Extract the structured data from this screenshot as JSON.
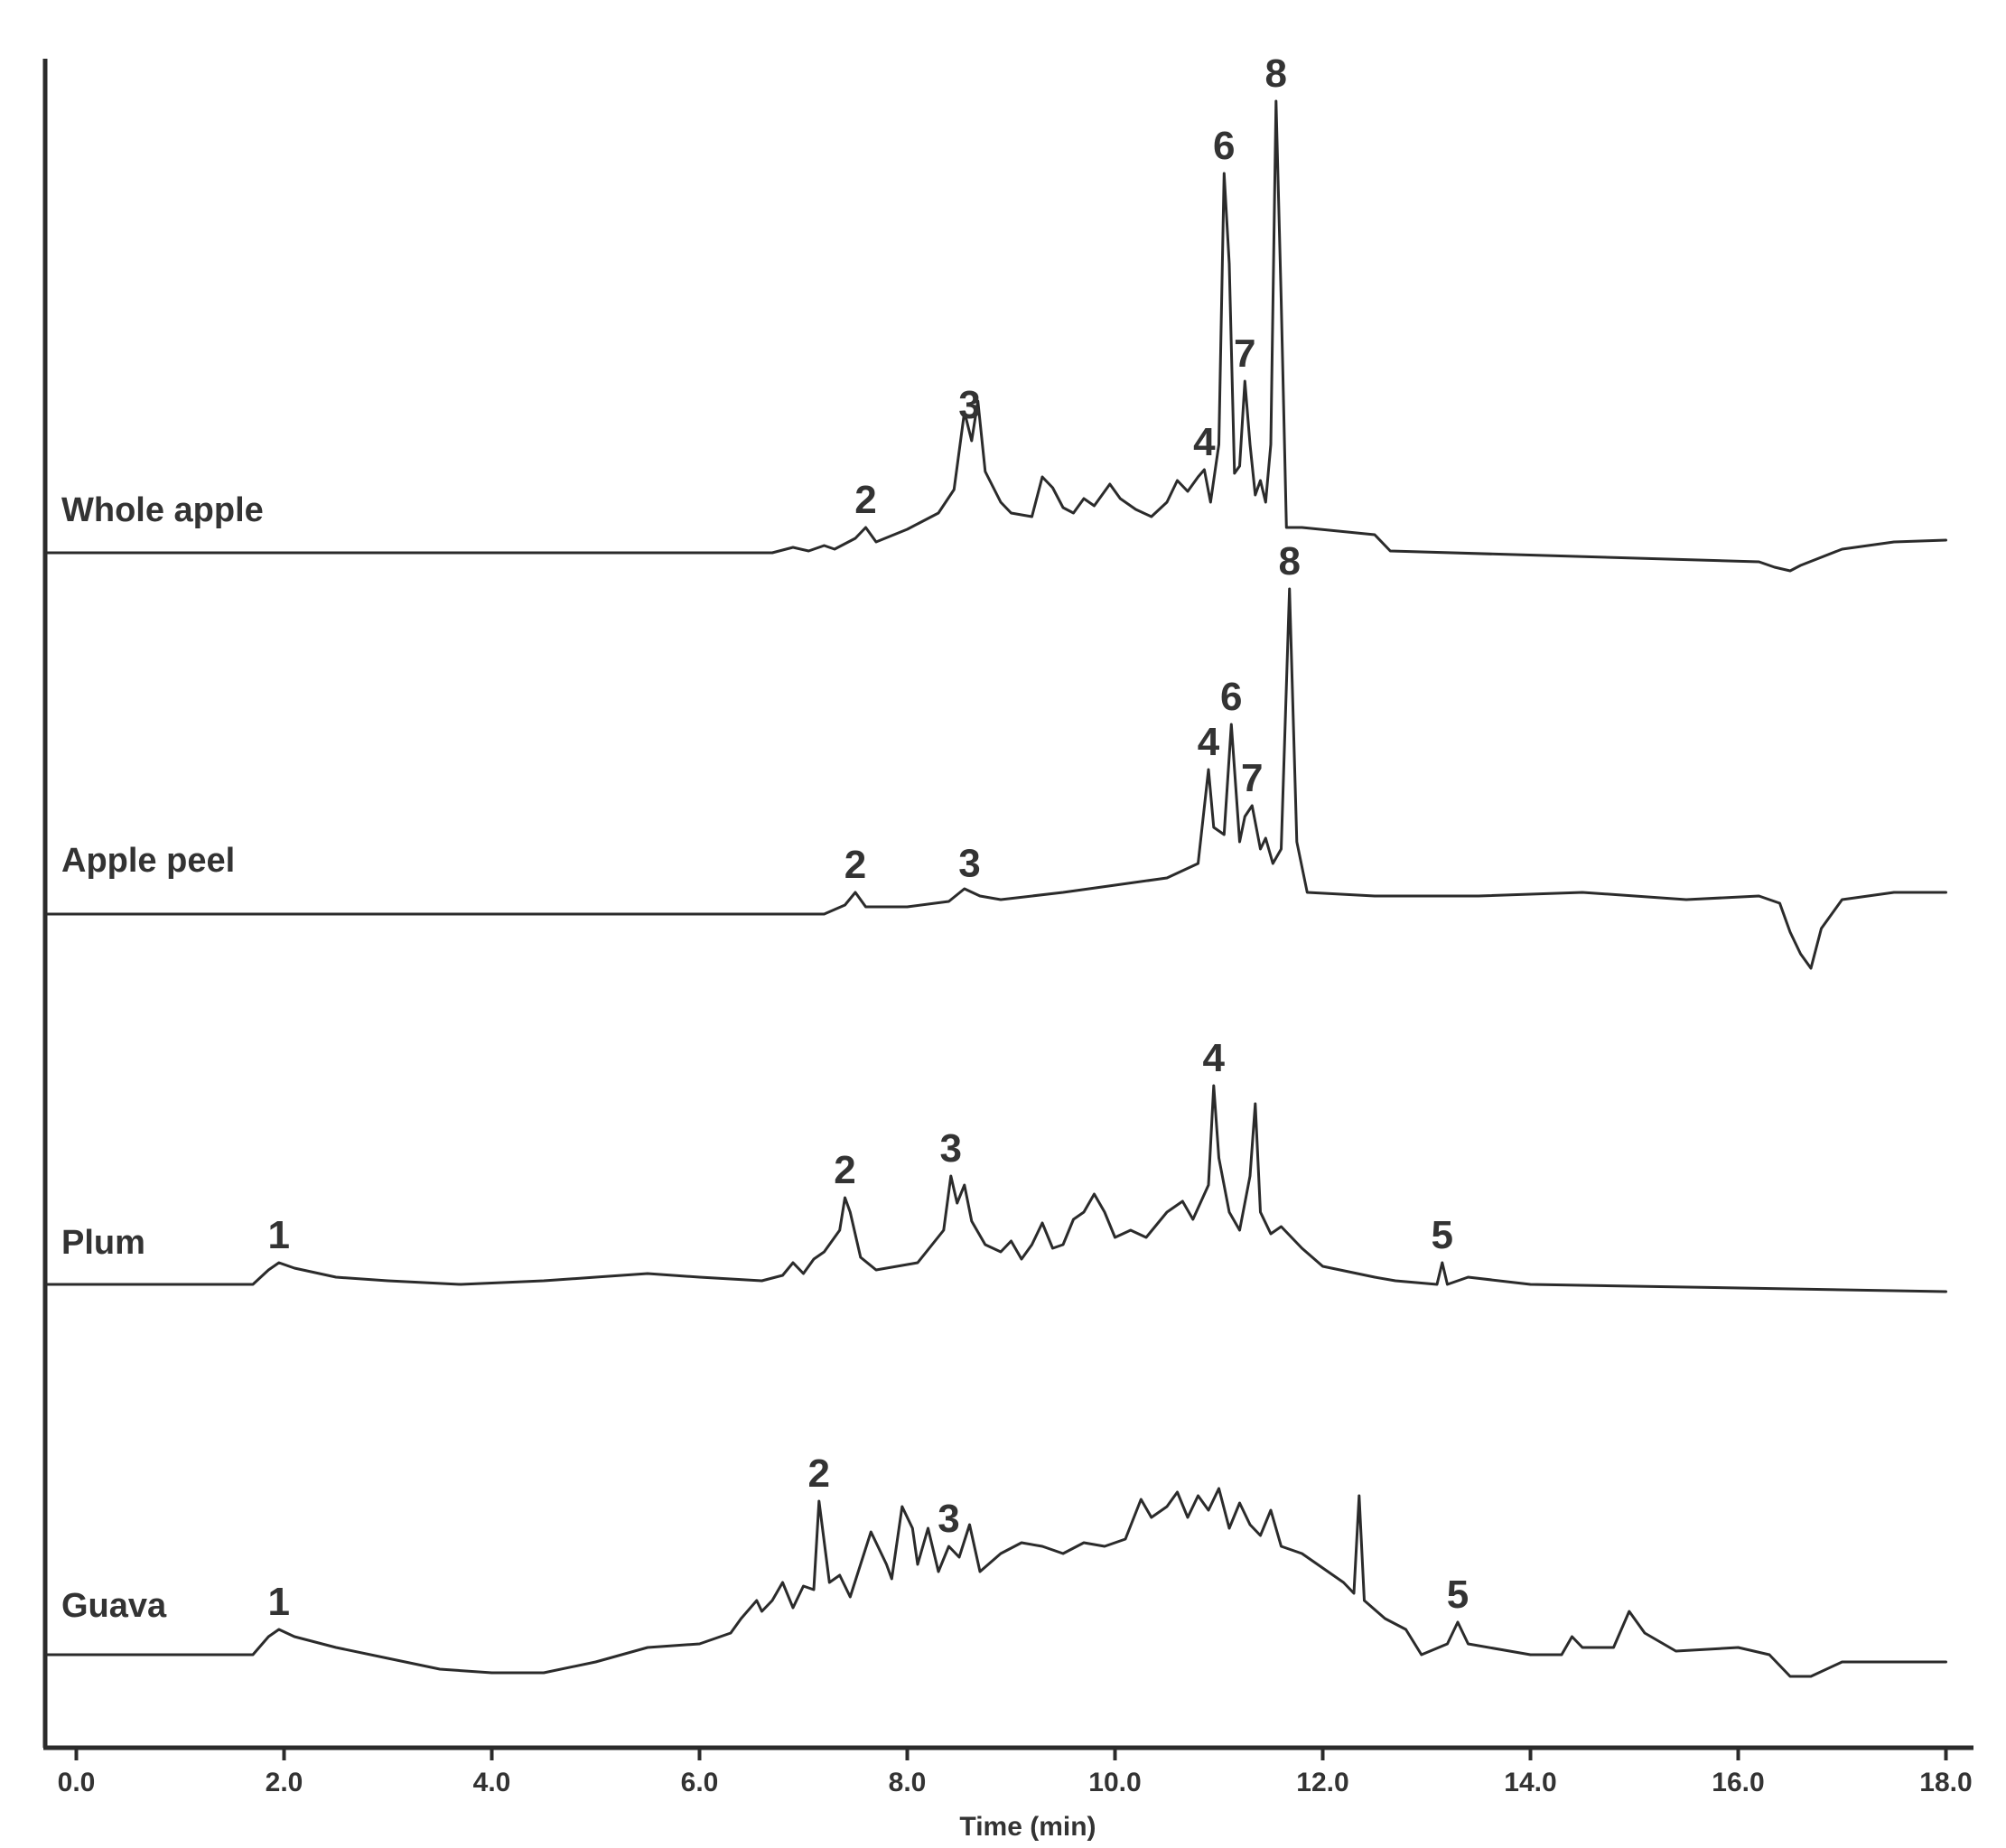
{
  "chart_data": {
    "type": "line",
    "title": "",
    "xlabel": "Time (min)",
    "ylabel": "",
    "xlim": [
      -0.3,
      18.0
    ],
    "grid": false,
    "legend": "none",
    "x_ticks": [
      "0.0",
      "2.0",
      "4.0",
      "6.0",
      "8.0",
      "10.0",
      "12.0",
      "14.0",
      "16.0",
      "18.0"
    ],
    "x_tick_values": [
      0,
      2,
      4,
      6,
      8,
      10,
      12,
      14,
      16,
      18
    ],
    "series": [
      {
        "name": "Whole apple",
        "points": [
          [
            -0.3,
            0
          ],
          [
            6.7,
            0
          ],
          [
            6.9,
            3
          ],
          [
            7.05,
            1
          ],
          [
            7.2,
            4
          ],
          [
            7.3,
            2
          ],
          [
            7.5,
            8
          ],
          [
            7.6,
            14
          ],
          [
            7.7,
            6
          ],
          [
            8.0,
            13
          ],
          [
            8.3,
            22
          ],
          [
            8.45,
            35
          ],
          [
            8.55,
            78
          ],
          [
            8.62,
            62
          ],
          [
            8.68,
            84
          ],
          [
            8.75,
            45
          ],
          [
            8.9,
            28
          ],
          [
            9.0,
            22
          ],
          [
            9.2,
            20
          ],
          [
            9.3,
            42
          ],
          [
            9.4,
            36
          ],
          [
            9.5,
            25
          ],
          [
            9.6,
            22
          ],
          [
            9.7,
            30
          ],
          [
            9.8,
            26
          ],
          [
            9.95,
            38
          ],
          [
            10.05,
            30
          ],
          [
            10.2,
            24
          ],
          [
            10.35,
            20
          ],
          [
            10.5,
            28
          ],
          [
            10.6,
            40
          ],
          [
            10.7,
            34
          ],
          [
            10.8,
            42
          ],
          [
            10.86,
            46
          ],
          [
            10.92,
            28
          ],
          [
            11.0,
            60
          ],
          [
            11.05,
            210
          ],
          [
            11.1,
            160
          ],
          [
            11.15,
            44
          ],
          [
            11.2,
            48
          ],
          [
            11.25,
            95
          ],
          [
            11.3,
            60
          ],
          [
            11.35,
            32
          ],
          [
            11.4,
            40
          ],
          [
            11.45,
            28
          ],
          [
            11.5,
            60
          ],
          [
            11.55,
            250
          ],
          [
            11.6,
            140
          ],
          [
            11.65,
            14
          ],
          [
            11.8,
            14
          ],
          [
            12.5,
            10
          ],
          [
            12.65,
            1
          ],
          [
            16.2,
            -5
          ],
          [
            16.35,
            -8
          ],
          [
            16.5,
            -10
          ],
          [
            16.6,
            -7
          ],
          [
            17.0,
            2
          ],
          [
            17.5,
            6
          ],
          [
            18.0,
            7
          ]
        ],
        "peak_labels": [
          {
            "label": "2",
            "x": 7.6
          },
          {
            "label": "3",
            "x": 8.6
          },
          {
            "label": "4",
            "x": 10.86
          },
          {
            "label": "6",
            "x": 11.05
          },
          {
            "label": "7",
            "x": 11.25
          },
          {
            "label": "8",
            "x": 11.55
          }
        ]
      },
      {
        "name": "Apple peel",
        "points": [
          [
            -0.3,
            0
          ],
          [
            7.2,
            0
          ],
          [
            7.4,
            5
          ],
          [
            7.5,
            12
          ],
          [
            7.6,
            4
          ],
          [
            8.0,
            4
          ],
          [
            8.4,
            7
          ],
          [
            8.55,
            14
          ],
          [
            8.7,
            10
          ],
          [
            8.9,
            8
          ],
          [
            9.5,
            12
          ],
          [
            10.0,
            16
          ],
          [
            10.5,
            20
          ],
          [
            10.8,
            28
          ],
          [
            10.9,
            80
          ],
          [
            10.95,
            48
          ],
          [
            11.05,
            44
          ],
          [
            11.12,
            105
          ],
          [
            11.2,
            40
          ],
          [
            11.25,
            54
          ],
          [
            11.32,
            60
          ],
          [
            11.4,
            36
          ],
          [
            11.45,
            42
          ],
          [
            11.52,
            28
          ],
          [
            11.6,
            36
          ],
          [
            11.68,
            180
          ],
          [
            11.75,
            40
          ],
          [
            11.85,
            12
          ],
          [
            12.5,
            10
          ],
          [
            13.5,
            10
          ],
          [
            14.5,
            12
          ],
          [
            15.5,
            8
          ],
          [
            16.2,
            10
          ],
          [
            16.4,
            6
          ],
          [
            16.5,
            -10
          ],
          [
            16.6,
            -22
          ],
          [
            16.7,
            -30
          ],
          [
            16.8,
            -8
          ],
          [
            17.0,
            8
          ],
          [
            17.5,
            12
          ],
          [
            18.0,
            12
          ]
        ],
        "peak_labels": [
          {
            "label": "2",
            "x": 7.5
          },
          {
            "label": "3",
            "x": 8.6
          },
          {
            "label": "4",
            "x": 10.9
          },
          {
            "label": "6",
            "x": 11.12
          },
          {
            "label": "7",
            "x": 11.32
          },
          {
            "label": "8",
            "x": 11.68
          }
        ]
      },
      {
        "name": "Plum",
        "points": [
          [
            -0.3,
            0
          ],
          [
            1.7,
            0
          ],
          [
            1.85,
            8
          ],
          [
            1.95,
            12
          ],
          [
            2.1,
            9
          ],
          [
            2.5,
            4
          ],
          [
            3.0,
            2
          ],
          [
            3.7,
            0
          ],
          [
            4.5,
            2
          ],
          [
            5.0,
            4
          ],
          [
            5.5,
            6
          ],
          [
            6.0,
            4
          ],
          [
            6.6,
            2
          ],
          [
            6.8,
            5
          ],
          [
            6.9,
            12
          ],
          [
            7.0,
            6
          ],
          [
            7.1,
            14
          ],
          [
            7.2,
            18
          ],
          [
            7.35,
            30
          ],
          [
            7.4,
            48
          ],
          [
            7.45,
            40
          ],
          [
            7.55,
            15
          ],
          [
            7.7,
            8
          ],
          [
            8.1,
            12
          ],
          [
            8.35,
            30
          ],
          [
            8.42,
            60
          ],
          [
            8.48,
            45
          ],
          [
            8.55,
            55
          ],
          [
            8.62,
            35
          ],
          [
            8.75,
            22
          ],
          [
            8.9,
            18
          ],
          [
            9.0,
            24
          ],
          [
            9.1,
            14
          ],
          [
            9.2,
            22
          ],
          [
            9.3,
            34
          ],
          [
            9.4,
            20
          ],
          [
            9.5,
            22
          ],
          [
            9.6,
            36
          ],
          [
            9.7,
            40
          ],
          [
            9.8,
            50
          ],
          [
            9.9,
            40
          ],
          [
            10.0,
            26
          ],
          [
            10.15,
            30
          ],
          [
            10.3,
            26
          ],
          [
            10.5,
            40
          ],
          [
            10.65,
            46
          ],
          [
            10.75,
            36
          ],
          [
            10.9,
            55
          ],
          [
            10.95,
            110
          ],
          [
            11.0,
            70
          ],
          [
            11.1,
            40
          ],
          [
            11.2,
            30
          ],
          [
            11.3,
            60
          ],
          [
            11.35,
            100
          ],
          [
            11.4,
            40
          ],
          [
            11.5,
            28
          ],
          [
            11.6,
            32
          ],
          [
            11.7,
            26
          ],
          [
            11.8,
            20
          ],
          [
            12.0,
            10
          ],
          [
            12.5,
            4
          ],
          [
            12.7,
            2
          ],
          [
            13.1,
            0
          ],
          [
            13.15,
            12
          ],
          [
            13.2,
            0
          ],
          [
            13.4,
            4
          ],
          [
            14.0,
            0
          ],
          [
            18.0,
            -4
          ]
        ],
        "peak_labels": [
          {
            "label": "1",
            "x": 1.95
          },
          {
            "label": "2",
            "x": 7.4
          },
          {
            "label": "3",
            "x": 8.42
          },
          {
            "label": "4",
            "x": 10.95
          },
          {
            "label": "5",
            "x": 13.15
          }
        ]
      },
      {
        "name": "Guava",
        "points": [
          [
            -0.3,
            0
          ],
          [
            1.7,
            0
          ],
          [
            1.85,
            10
          ],
          [
            1.95,
            14
          ],
          [
            2.1,
            10
          ],
          [
            2.5,
            4
          ],
          [
            3.0,
            -2
          ],
          [
            3.5,
            -8
          ],
          [
            4.0,
            -10
          ],
          [
            4.5,
            -10
          ],
          [
            5.0,
            -4
          ],
          [
            5.5,
            4
          ],
          [
            6.0,
            6
          ],
          [
            6.3,
            12
          ],
          [
            6.4,
            20
          ],
          [
            6.55,
            30
          ],
          [
            6.6,
            24
          ],
          [
            6.7,
            30
          ],
          [
            6.8,
            40
          ],
          [
            6.9,
            26
          ],
          [
            7.0,
            38
          ],
          [
            7.1,
            36
          ],
          [
            7.15,
            85
          ],
          [
            7.25,
            40
          ],
          [
            7.35,
            44
          ],
          [
            7.45,
            32
          ],
          [
            7.55,
            50
          ],
          [
            7.65,
            68
          ],
          [
            7.8,
            50
          ],
          [
            7.85,
            42
          ],
          [
            7.95,
            82
          ],
          [
            8.05,
            70
          ],
          [
            8.1,
            50
          ],
          [
            8.2,
            70
          ],
          [
            8.3,
            46
          ],
          [
            8.4,
            60
          ],
          [
            8.5,
            54
          ],
          [
            8.6,
            72
          ],
          [
            8.7,
            46
          ],
          [
            8.9,
            56
          ],
          [
            9.1,
            62
          ],
          [
            9.3,
            60
          ],
          [
            9.5,
            56
          ],
          [
            9.7,
            62
          ],
          [
            9.9,
            60
          ],
          [
            10.1,
            64
          ],
          [
            10.25,
            86
          ],
          [
            10.35,
            76
          ],
          [
            10.5,
            82
          ],
          [
            10.6,
            90
          ],
          [
            10.7,
            76
          ],
          [
            10.8,
            88
          ],
          [
            10.9,
            80
          ],
          [
            11.0,
            92
          ],
          [
            11.1,
            70
          ],
          [
            11.2,
            84
          ],
          [
            11.3,
            72
          ],
          [
            11.4,
            66
          ],
          [
            11.5,
            80
          ],
          [
            11.6,
            60
          ],
          [
            11.8,
            56
          ],
          [
            12.0,
            48
          ],
          [
            12.2,
            40
          ],
          [
            12.3,
            34
          ],
          [
            12.35,
            88
          ],
          [
            12.4,
            30
          ],
          [
            12.6,
            20
          ],
          [
            12.8,
            14
          ],
          [
            12.95,
            0
          ],
          [
            13.2,
            6
          ],
          [
            13.3,
            18
          ],
          [
            13.4,
            6
          ],
          [
            14.0,
            0
          ],
          [
            14.3,
            0
          ],
          [
            14.4,
            10
          ],
          [
            14.5,
            4
          ],
          [
            14.8,
            4
          ],
          [
            14.95,
            24
          ],
          [
            15.1,
            12
          ],
          [
            15.4,
            2
          ],
          [
            16.0,
            4
          ],
          [
            16.3,
            0
          ],
          [
            16.5,
            -12
          ],
          [
            16.7,
            -12
          ],
          [
            17.0,
            -4
          ],
          [
            17.5,
            -4
          ],
          [
            18.0,
            -4
          ]
        ],
        "peak_labels": [
          {
            "label": "1",
            "x": 1.95
          },
          {
            "label": "2",
            "x": 7.15
          },
          {
            "label": "3",
            "x": 8.4
          },
          {
            "label": "5",
            "x": 13.3
          }
        ]
      }
    ]
  }
}
